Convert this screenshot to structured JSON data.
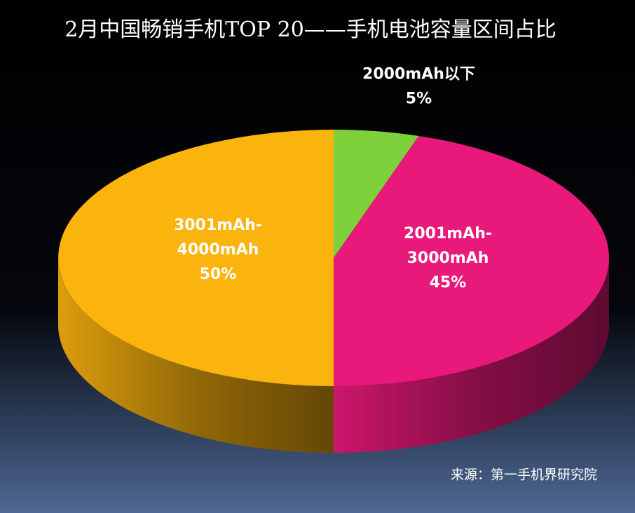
{
  "chart_data": {
    "type": "pie",
    "title": "2月中国畅销手机TOP 20——手机电池容量区间占比",
    "categories": [
      "2000mAh以下",
      "2001mAh-3000mAh",
      "3001mAh-4000mAh"
    ],
    "values": [
      5,
      45,
      50
    ],
    "value_labels": [
      "5%",
      "45%",
      "50%"
    ],
    "colors": [
      "#7fd13b",
      "#e8197a",
      "#fbb30e"
    ],
    "source": "来源：第一手机界研究院"
  }
}
